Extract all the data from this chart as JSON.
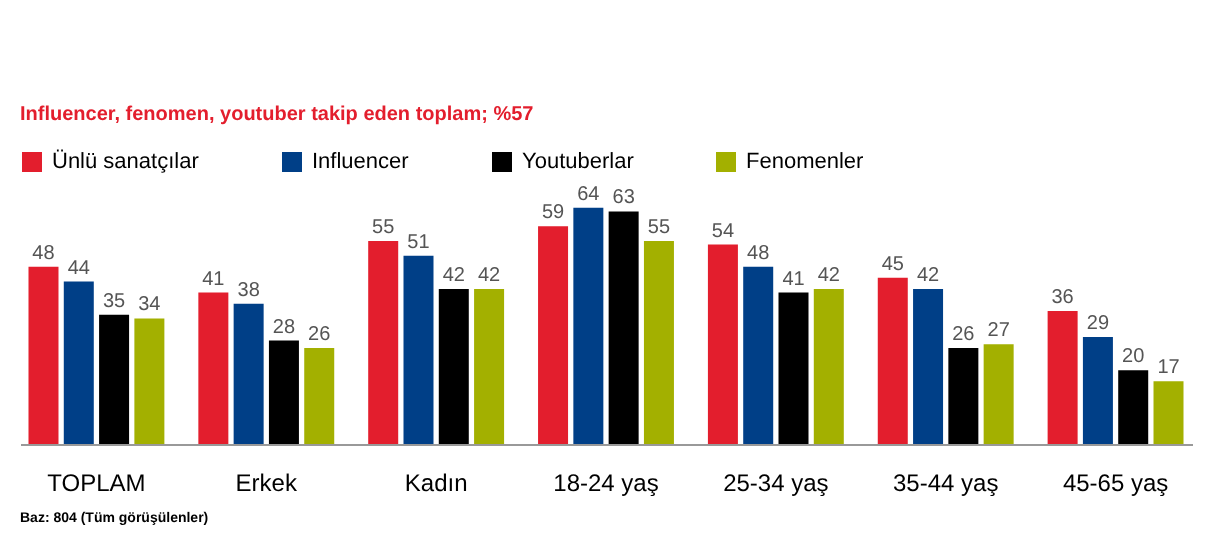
{
  "chart_data": {
    "type": "bar",
    "categories": [
      "TOPLAM",
      "Erkek",
      "Kadın",
      "18-24 yaş",
      "25-34 yaş",
      "35-44 yaş",
      "45-65 yaş"
    ],
    "series": [
      {
        "name": "Ünlü sanatçılar",
        "color": "#e31e2d",
        "values": [
          48,
          41,
          55,
          59,
          54,
          45,
          36
        ]
      },
      {
        "name": "Influencer",
        "color": "#003f87",
        "values": [
          44,
          38,
          51,
          64,
          48,
          42,
          29
        ]
      },
      {
        "name": "Youtuberlar",
        "color": "#000000",
        "values": [
          35,
          28,
          42,
          63,
          41,
          26,
          20
        ]
      },
      {
        "name": "Fenomenler",
        "color": "#a3b000",
        "values": [
          34,
          26,
          42,
          55,
          42,
          27,
          17
        ]
      }
    ],
    "data_labels": true,
    "legend": "top",
    "annotations": [
      "Influencer, fenomen, youtuber takip eden toplam; %57",
      "Baz: 804 (Tüm görüşülenler)"
    ]
  }
}
